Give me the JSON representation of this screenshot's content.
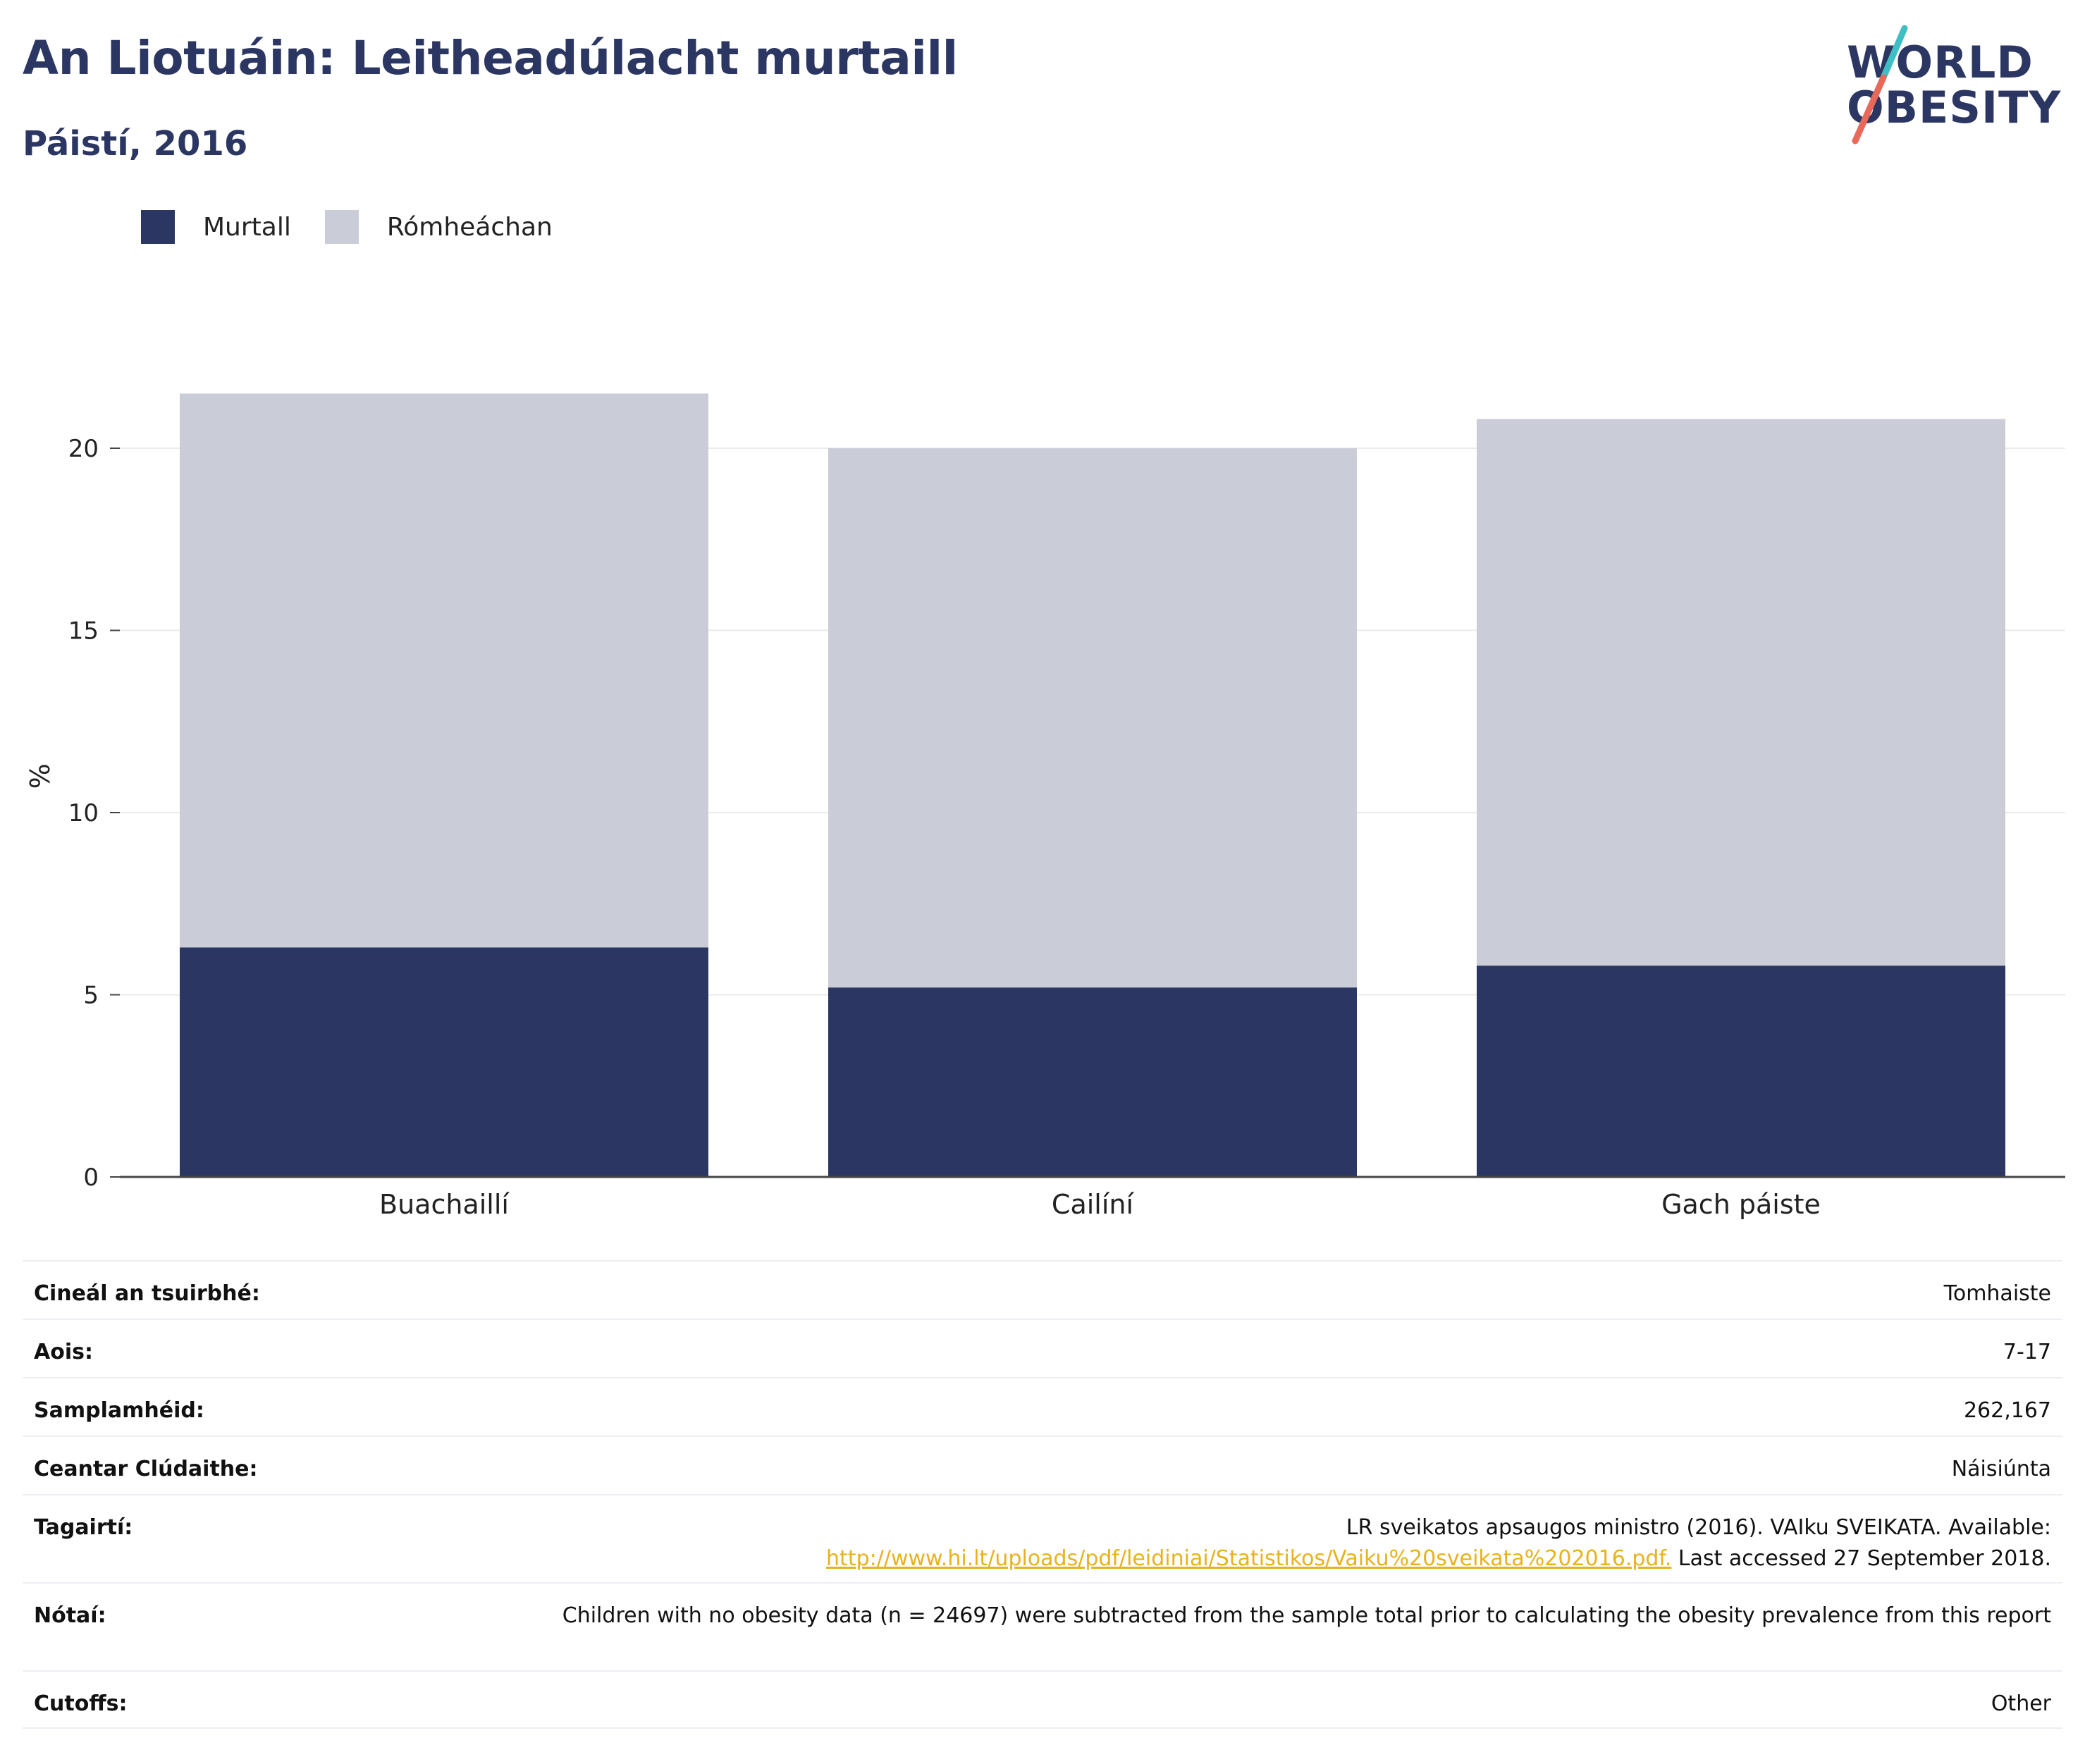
{
  "header": {
    "title": "An Liotuáin: Leitheadúlacht murtaill",
    "subtitle": "Páistí, 2016"
  },
  "logo": {
    "line1": "WORLD",
    "line2": "OBESITY",
    "colors": {
      "text": "#2b3762",
      "slash_top": "#3fbfc4",
      "slash_bottom": "#e8685a"
    }
  },
  "legend": [
    {
      "label": "Murtall",
      "color": "#2b3762"
    },
    {
      "label": "Rómheáchan",
      "color": "#cacdd8"
    }
  ],
  "chart_data": {
    "type": "bar",
    "stacked": true,
    "categories": [
      "Buachaillí",
      "Cailíní",
      "Gach páiste"
    ],
    "series": [
      {
        "name": "Murtall",
        "color": "#2b3762",
        "values": [
          6.3,
          5.2,
          5.8
        ]
      },
      {
        "name": "Rómheáchan",
        "color": "#cacdd8",
        "values": [
          15.2,
          14.8,
          15.0
        ]
      }
    ],
    "ylabel": "%",
    "xlabel": "",
    "ylim": [
      0,
      22
    ],
    "yticks": [
      0,
      5,
      10,
      15,
      20
    ],
    "grid": true,
    "legend_position": "top-left"
  },
  "meta": [
    {
      "key": "Cineál an tsuirbhé:",
      "value": "Tomhaiste"
    },
    {
      "key": "Aois:",
      "value": "7-17"
    },
    {
      "key": "Samplamhéid:",
      "value": "262,167"
    },
    {
      "key": "Ceantar Clúdaithe:",
      "value": "Náisiúnta"
    },
    {
      "key": "Tagairtí:",
      "value_line1": "LR sveikatos apsaugos ministro (2016). VAIku SVEIKATA. Available:",
      "link": "http://www.hi.lt/uploads/pdf/leidiniai/Statistikos/Vaiku%20sveikata%202016.pdf.",
      "value_after_link": " Last accessed 27 September 2018."
    },
    {
      "key": "Nótaí:",
      "value": "Children with no obesity data (n = 24697) were subtracted from the sample total prior to calculating the obesity prevalence from this report"
    },
    {
      "key": "Cutoffs:",
      "value": "Other"
    }
  ]
}
